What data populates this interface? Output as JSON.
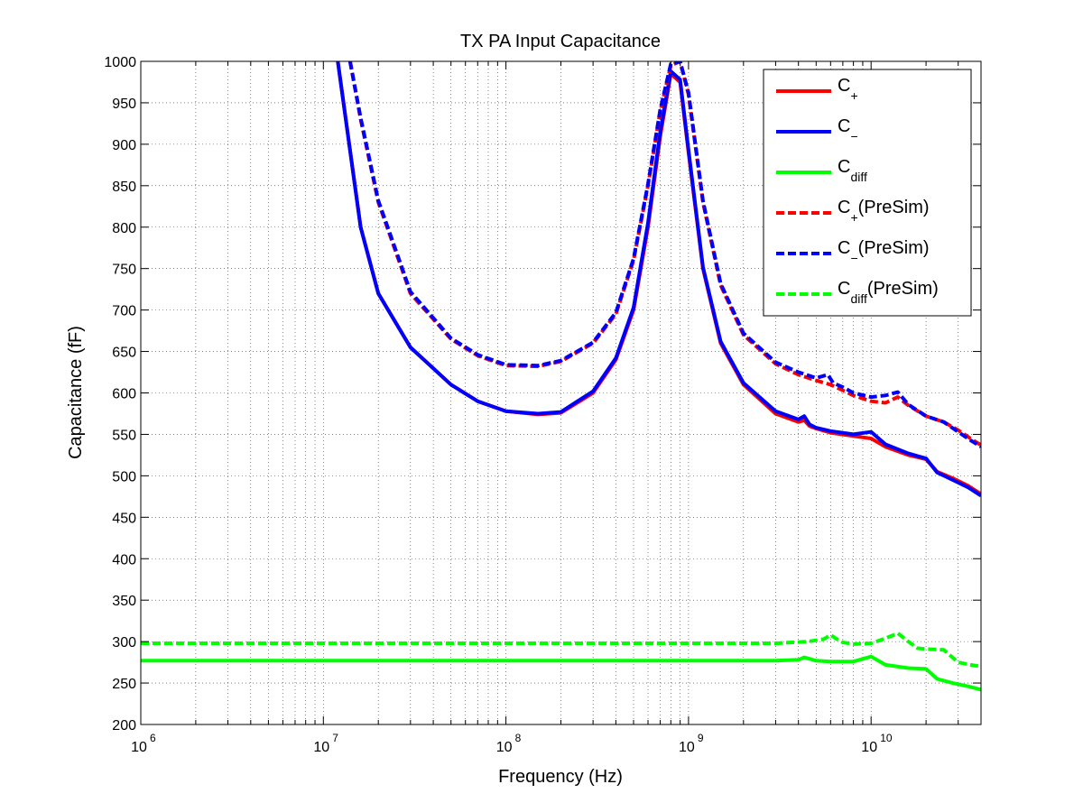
{
  "chart_data": {
    "type": "line",
    "title": "TX PA Input Capacitance",
    "xlabel": "Frequency (Hz)",
    "ylabel": "Capacitance (fF)",
    "xscale": "log",
    "xlim": [
      1000000.0,
      40000000000.0
    ],
    "ylim": [
      200,
      1000
    ],
    "grid": true,
    "legend_position": "top-right",
    "x_tick_labels": [
      {
        "base": "10",
        "exp": "6",
        "value": 1000000.0
      },
      {
        "base": "10",
        "exp": "7",
        "value": 10000000.0
      },
      {
        "base": "10",
        "exp": "8",
        "value": 100000000.0
      },
      {
        "base": "10",
        "exp": "9",
        "value": 1000000000.0
      },
      {
        "base": "10",
        "exp": "10",
        "value": 10000000000.0
      }
    ],
    "y_ticks": [
      200,
      250,
      300,
      350,
      400,
      450,
      500,
      550,
      600,
      650,
      700,
      750,
      800,
      850,
      900,
      950,
      1000
    ],
    "series": [
      {
        "name": "C+",
        "label_main": "C",
        "label_sub": "+",
        "label_suffix": "",
        "color": "#ff0000",
        "style": "solid",
        "x": [
          12000000.0,
          16000000.0,
          20000000.0,
          30000000.0,
          50000000.0,
          70000000.0,
          100000000.0,
          150000000.0,
          200000000.0,
          300000000.0,
          400000000.0,
          500000000.0,
          600000000.0,
          700000000.0,
          800000000.0,
          900000000.0,
          1000000000.0,
          1200000000.0,
          1500000000.0,
          2000000000.0,
          3000000000.0,
          4000000000.0,
          4300000000.0,
          4600000000.0,
          5000000000.0,
          6000000000.0,
          8000000000.0,
          10000000000.0,
          12000000000.0,
          16000000000.0,
          20000000000.0,
          23000000000.0,
          28000000000.0,
          34000000000.0,
          40000000000.0
        ],
        "y": [
          1000,
          800,
          720,
          655,
          610,
          590,
          578,
          574,
          576,
          600,
          640,
          700,
          800,
          910,
          985,
          975,
          890,
          750,
          660,
          610,
          575,
          565,
          567,
          560,
          557,
          552,
          548,
          545,
          535,
          525,
          520,
          505,
          497,
          488,
          478
        ]
      },
      {
        "name": "C−",
        "label_main": "C",
        "label_sub": "−",
        "label_suffix": "",
        "color": "#0000ff",
        "style": "solid",
        "x": [
          12000000.0,
          16000000.0,
          20000000.0,
          30000000.0,
          50000000.0,
          70000000.0,
          100000000.0,
          150000000.0,
          200000000.0,
          300000000.0,
          400000000.0,
          500000000.0,
          600000000.0,
          700000000.0,
          800000000.0,
          900000000.0,
          1000000000.0,
          1200000000.0,
          1500000000.0,
          2000000000.0,
          3000000000.0,
          4000000000.0,
          4300000000.0,
          4600000000.0,
          5000000000.0,
          6000000000.0,
          8000000000.0,
          10000000000.0,
          12000000000.0,
          16000000000.0,
          20000000000.0,
          23000000000.0,
          28000000000.0,
          34000000000.0,
          40000000000.0
        ],
        "y": [
          1000,
          800,
          720,
          655,
          610,
          590,
          578,
          575,
          577,
          602,
          642,
          703,
          805,
          915,
          988,
          978,
          893,
          752,
          662,
          612,
          578,
          568,
          572,
          562,
          558,
          554,
          550,
          553,
          538,
          527,
          521,
          504,
          495,
          486,
          476
        ]
      },
      {
        "name": "Cdiff",
        "label_main": "C",
        "label_sub": "diff",
        "label_suffix": "",
        "color": "#00ff00",
        "style": "solid",
        "x": [
          1000000.0,
          10000000.0,
          100000000.0,
          1000000000.0,
          3000000000.0,
          4000000000.0,
          4300000000.0,
          5000000000.0,
          6000000000.0,
          8000000000.0,
          10000000000.0,
          12000000000.0,
          16000000000.0,
          20000000000.0,
          23000000000.0,
          28000000000.0,
          34000000000.0,
          40000000000.0
        ],
        "y": [
          277,
          277,
          277,
          277,
          277,
          278,
          281,
          277,
          276,
          276,
          282,
          272,
          268,
          267,
          255,
          250,
          246,
          242
        ]
      },
      {
        "name": "C+(PreSim)",
        "label_main": "C",
        "label_sub": "+",
        "label_suffix": "(PreSim)",
        "color": "#ff0000",
        "style": "dashed",
        "x": [
          14000000.0,
          16000000.0,
          20000000.0,
          30000000.0,
          50000000.0,
          70000000.0,
          100000000.0,
          150000000.0,
          200000000.0,
          300000000.0,
          400000000.0,
          500000000.0,
          600000000.0,
          700000000.0,
          800000000.0,
          900000000.0,
          1000000000.0,
          1200000000.0,
          1500000000.0,
          2000000000.0,
          3000000000.0,
          4000000000.0,
          5000000000.0,
          6000000000.0,
          7000000000.0,
          8000000000.0,
          10000000000.0,
          12000000000.0,
          14000000000.0,
          16000000000.0,
          20000000000.0,
          25000000000.0,
          30000000000.0,
          35000000000.0,
          40000000000.0
        ],
        "y": [
          1000,
          930,
          830,
          720,
          665,
          645,
          633,
          632,
          638,
          660,
          695,
          760,
          850,
          940,
          995,
          1000,
          960,
          830,
          730,
          670,
          635,
          622,
          615,
          610,
          603,
          597,
          590,
          588,
          595,
          585,
          572,
          565,
          555,
          545,
          537
        ]
      },
      {
        "name": "C−(PreSim)",
        "label_main": "C",
        "label_sub": "−",
        "label_suffix": "(PreSim)",
        "color": "#0000ff",
        "style": "dashed",
        "x": [
          14000000.0,
          16000000.0,
          20000000.0,
          30000000.0,
          50000000.0,
          70000000.0,
          100000000.0,
          150000000.0,
          200000000.0,
          300000000.0,
          400000000.0,
          500000000.0,
          600000000.0,
          700000000.0,
          800000000.0,
          900000000.0,
          1000000000.0,
          1200000000.0,
          1500000000.0,
          2000000000.0,
          3000000000.0,
          4000000000.0,
          5000000000.0,
          5800000000.0,
          6200000000.0,
          7000000000.0,
          8000000000.0,
          10000000000.0,
          12000000000.0,
          14000000000.0,
          16000000000.0,
          20000000000.0,
          25000000000.0,
          30000000000.0,
          35000000000.0,
          40000000000.0
        ],
        "y": [
          1000,
          932,
          832,
          722,
          666,
          646,
          634,
          633,
          639,
          661,
          697,
          762,
          852,
          942,
          997,
          1000,
          962,
          832,
          732,
          672,
          637,
          625,
          618,
          622,
          612,
          607,
          600,
          595,
          597,
          601,
          586,
          572,
          565,
          553,
          543,
          535
        ]
      },
      {
        "name": "Cdiff(PreSim)",
        "label_main": "C",
        "label_sub": "diff",
        "label_suffix": "(PreSim)",
        "color": "#00ff00",
        "style": "dashed",
        "x": [
          1000000.0,
          10000000.0,
          100000000.0,
          1000000000.0,
          3000000000.0,
          4500000000.0,
          5500000000.0,
          6000000000.0,
          6500000000.0,
          7000000000.0,
          8000000000.0,
          10000000000.0,
          12000000000.0,
          14000000000.0,
          16000000000.0,
          18000000000.0,
          20000000000.0,
          25000000000.0,
          30000000000.0,
          35000000000.0,
          40000000000.0
        ],
        "y": [
          298,
          298,
          298,
          298,
          298,
          300,
          303,
          308,
          303,
          299,
          297,
          298,
          304,
          310,
          300,
          292,
          291,
          290,
          275,
          272,
          270
        ]
      }
    ]
  }
}
